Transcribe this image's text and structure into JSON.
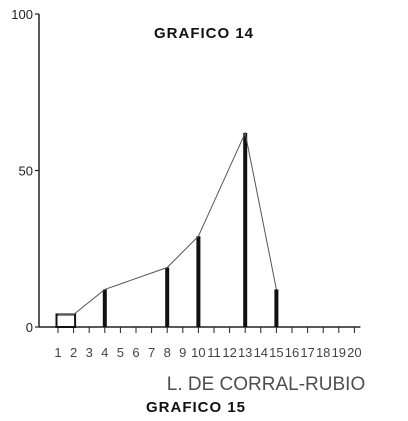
{
  "chart_data": {
    "type": "bar",
    "title": "GRAFICO 14",
    "xlabel": "L. DE CORRAL-RUBIO",
    "caption": "GRAFICO 15",
    "ylim": [
      0,
      100
    ],
    "yticks": [
      "100",
      "50",
      "0"
    ],
    "categories": [
      "1",
      "2",
      "3",
      "4",
      "5",
      "6",
      "7",
      "8",
      "9",
      "10",
      "11",
      "12",
      "13",
      "14",
      "15",
      "16",
      "17",
      "18",
      "19",
      "20"
    ],
    "values": [
      4,
      4,
      0,
      12,
      0,
      0,
      0,
      19,
      0,
      29,
      0,
      0,
      62,
      0,
      12,
      0,
      0,
      0,
      0,
      0
    ],
    "line_points": [
      [
        1,
        4
      ],
      [
        2,
        4
      ],
      [
        4,
        12
      ],
      [
        8,
        19
      ],
      [
        10,
        29
      ],
      [
        13,
        62
      ],
      [
        15,
        12
      ]
    ],
    "colors": {
      "bar": "#111111",
      "line": "#555555",
      "axis": "#222222"
    }
  }
}
